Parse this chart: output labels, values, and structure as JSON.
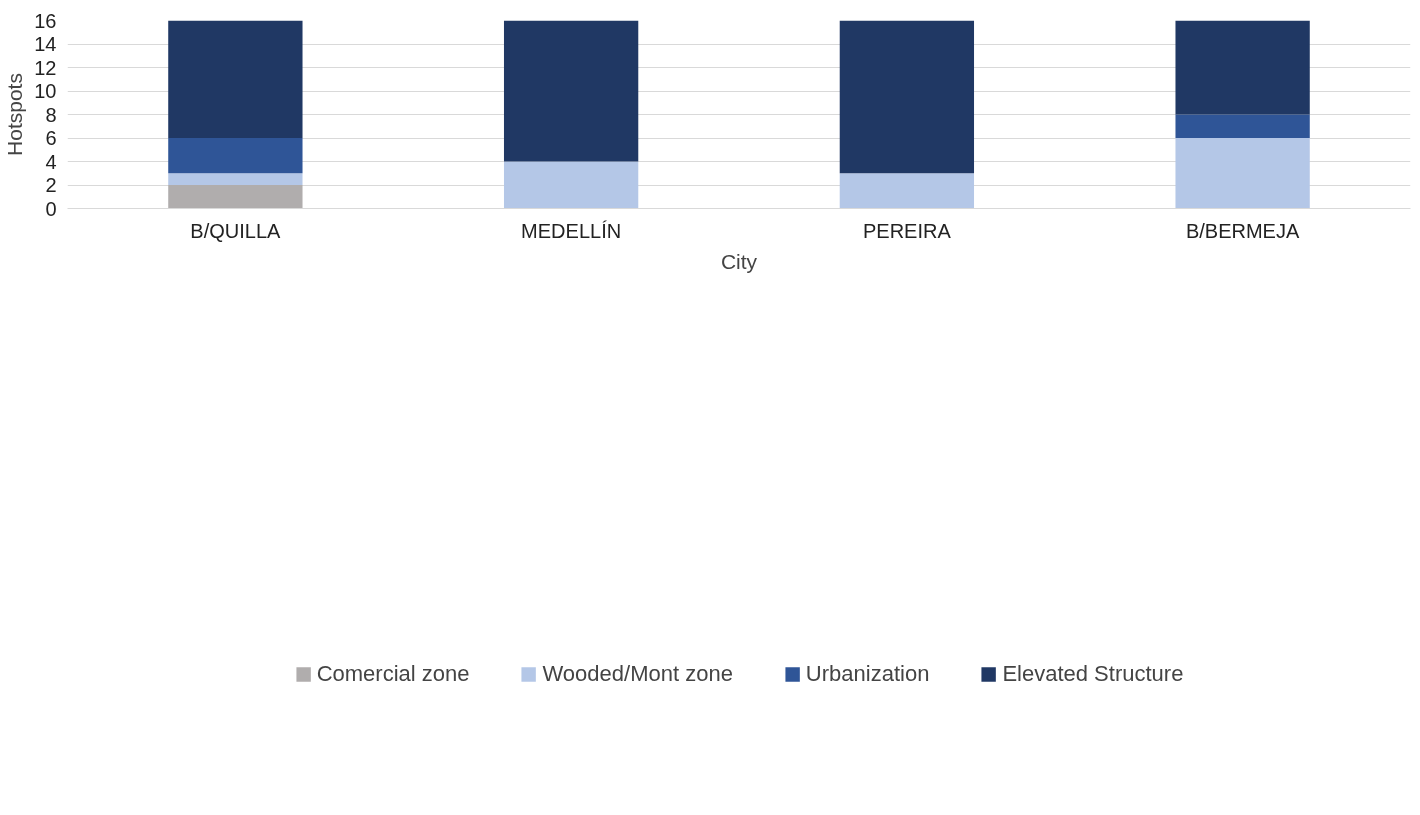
{
  "chart_data": {
    "type": "bar",
    "stacked": true,
    "xlabel": "City",
    "ylabel": "Hotspots",
    "categories": [
      "B/QUILLA",
      "MEDELLÍN",
      "PEREIRA",
      "B/BERMEJA"
    ],
    "series": [
      {
        "name": "Comercial zone",
        "color": "#b0adad",
        "values": [
          2,
          0,
          0,
          0
        ]
      },
      {
        "name": "Wooded/Mont zone",
        "color": "#b4c7e7",
        "values": [
          1,
          4,
          3,
          6
        ]
      },
      {
        "name": "Urbanization",
        "color": "#2f5597",
        "values": [
          3,
          0,
          0,
          2
        ]
      },
      {
        "name": "Elevated Structure",
        "color": "#203864",
        "values": [
          10,
          12,
          13,
          8
        ]
      }
    ],
    "ylim": [
      0,
      16
    ],
    "yticks": [
      0,
      2,
      4,
      6,
      8,
      10,
      12,
      14,
      16
    ],
    "grid": "y",
    "legend": "bottom"
  }
}
